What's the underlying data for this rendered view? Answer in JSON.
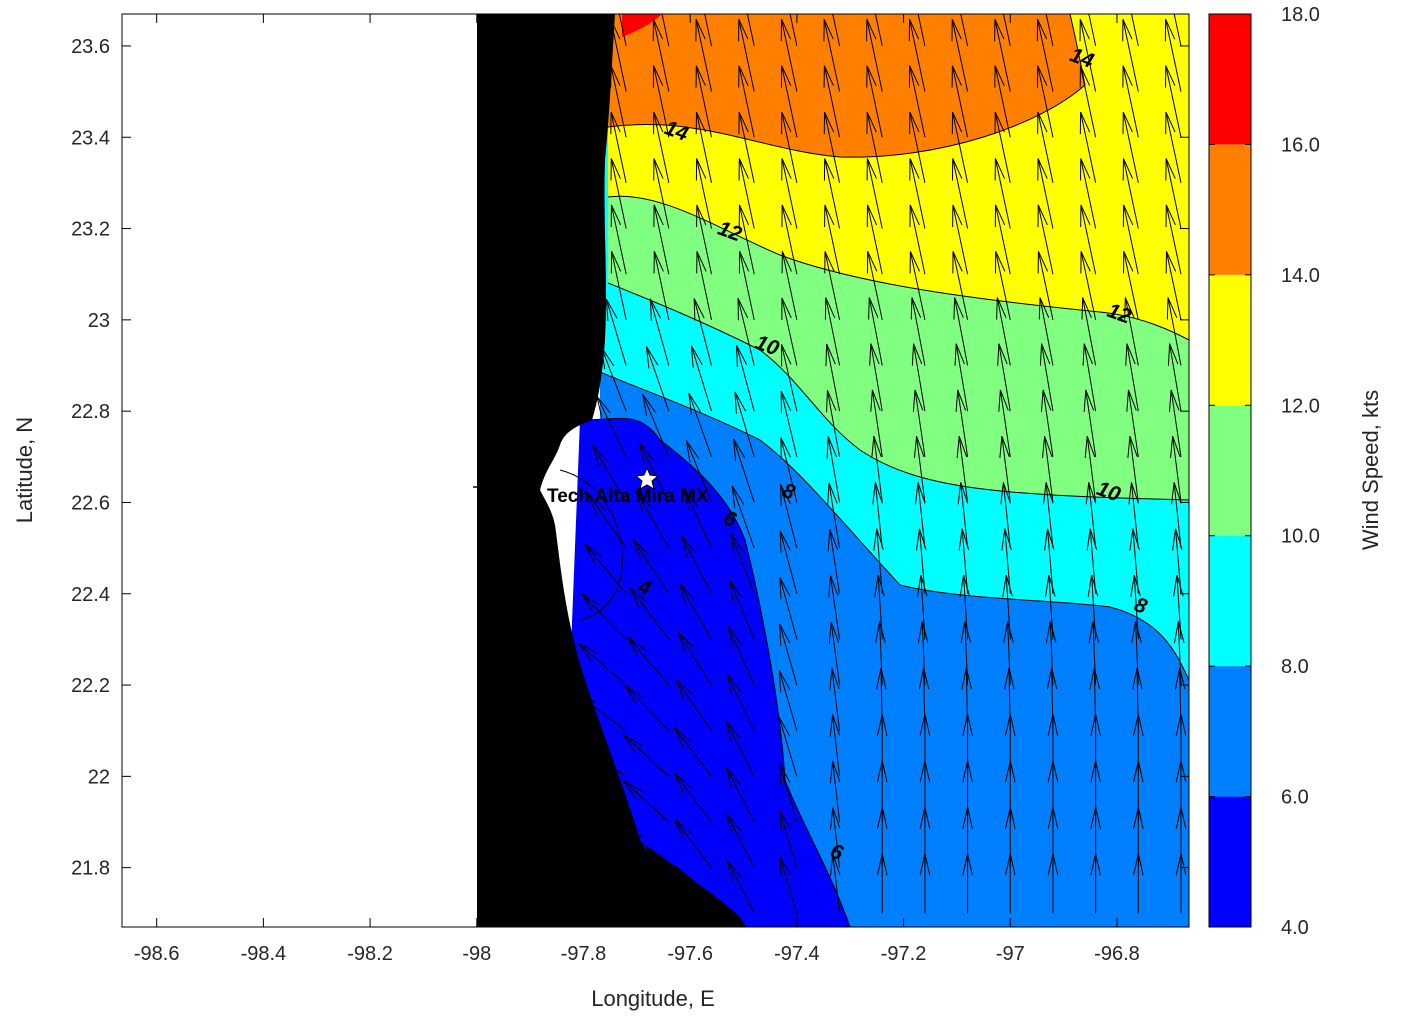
{
  "chart_data": {
    "type": "contour-map",
    "title": "",
    "xlabel": "Longitude, E",
    "ylabel": "Latitude, N",
    "xlim": [
      -98.665,
      -96.665
    ],
    "ylim": [
      21.67,
      23.67
    ],
    "xticks": [
      -98.6,
      -98.4,
      -98.2,
      -98,
      -97.8,
      -97.6,
      -97.4,
      -97.2,
      -97,
      -96.8
    ],
    "xtick_labels": [
      "-98.6",
      "-98.4",
      "-98.2",
      "-98",
      "-97.8",
      "-97.6",
      "-97.4",
      "-97.2",
      "-97",
      "-96.8"
    ],
    "yticks": [
      21.8,
      22.0,
      22.2,
      22.4,
      22.6,
      22.8,
      23.0,
      23.2,
      23.4,
      23.6
    ],
    "ytick_labels": [
      "21.8",
      "22",
      "22.2",
      "22.4",
      "22.6",
      "22.8",
      "23",
      "23.2",
      "23.4",
      "23.6"
    ],
    "colorbar": {
      "label": "Wind Speed, kts",
      "levels": [
        4.0,
        6.0,
        8.0,
        10.0,
        12.0,
        14.0,
        16.0,
        18.0
      ],
      "tick_labels": [
        "4.0",
        "6.0",
        "8.0",
        "10.0",
        "12.0",
        "14.0",
        "16.0",
        "18.0"
      ],
      "colors": [
        "#0000ff",
        "#0080ff",
        "#00ffff",
        "#80ff80",
        "#ffff00",
        "#ff8000",
        "#ff0000"
      ]
    },
    "land_color": "#000000",
    "contour_labels": [
      {
        "text": "14",
        "lon": -97.63,
        "lat": 23.4
      },
      {
        "text": "14",
        "lon": -96.87,
        "lat": 23.56
      },
      {
        "text": "12",
        "lon": -97.53,
        "lat": 23.18
      },
      {
        "text": "12",
        "lon": -96.8,
        "lat": 23.0
      },
      {
        "text": "10",
        "lon": -97.46,
        "lat": 22.93
      },
      {
        "text": "10",
        "lon": -96.82,
        "lat": 22.61
      },
      {
        "text": "8",
        "lon": -97.42,
        "lat": 22.61
      },
      {
        "text": "8",
        "lon": -96.76,
        "lat": 22.36
      },
      {
        "text": "6",
        "lon": -97.53,
        "lat": 22.55
      },
      {
        "text": "6",
        "lon": -97.33,
        "lat": 21.82
      },
      {
        "text": "4",
        "lon": -97.69,
        "lat": 22.4
      }
    ],
    "station": {
      "name": "Tech Alta Mira MX",
      "lon": -97.68,
      "lat": 22.65
    },
    "wind_vector_grid": {
      "lon_start": -97.72,
      "lon_step": 0.08,
      "lat_start": 21.7,
      "lat_step": 0.1
    }
  }
}
